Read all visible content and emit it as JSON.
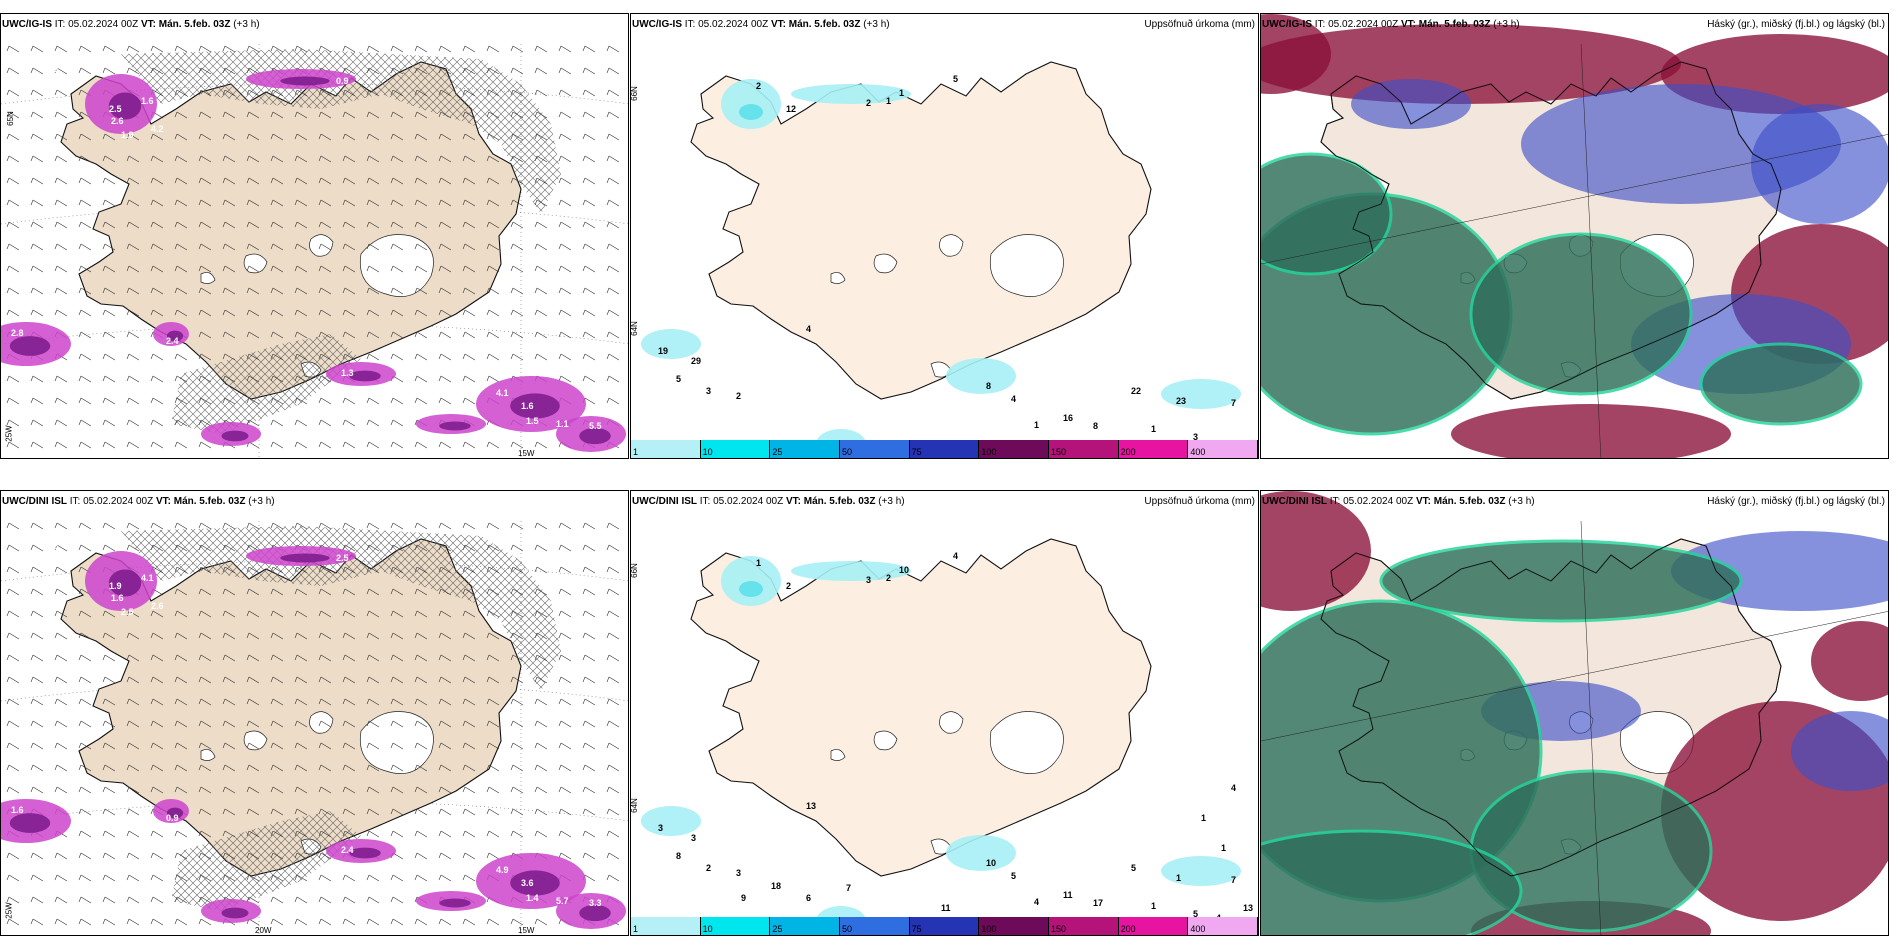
{
  "panels": [
    {
      "id": "igis-wind",
      "prefix": "UWC/IG-IS",
      "it": "IT: 05.02.2024 00Z",
      "vt": "VT: Mán. 5.feb. 03Z",
      "lead": "(+3 h)",
      "right_title": "",
      "precip_labels": [
        "0.2",
        "2.6",
        "1.6",
        "4.2",
        "2.5",
        "1.9",
        "2.4",
        "2.8",
        "1.3",
        "1.6",
        "1.5",
        "4.1",
        "1.1",
        "5.5",
        "0.9"
      ],
      "axis_labels": {
        "lat1": "65N",
        "lat2": "25W",
        "lon1": "",
        "lon2": "15W"
      }
    },
    {
      "id": "igis-precip",
      "prefix": "UWC/IG-IS",
      "it": "IT: 05.02.2024 00Z",
      "vt": "VT: Mán. 5.feb. 03Z",
      "lead": "(+3 h)",
      "right_title": "Uppsöfnuð úrkoma (mm)",
      "precip_labels": [
        "2",
        "1",
        "12",
        "2",
        "1",
        "5",
        "4",
        "19",
        "29",
        "5",
        "3",
        "2",
        "8",
        "4",
        "22",
        "23",
        "7",
        "16",
        "8",
        "1",
        "1",
        "3"
      ],
      "axis_labels": {
        "lat1": "66N",
        "lat2": "64N"
      }
    },
    {
      "id": "igis-cloud",
      "prefix": "UWC/IG-IS",
      "it": "IT: 05.02.2024 00Z",
      "vt": "VT: Mán. 5.feb. 03Z",
      "lead": "(+3 h)",
      "right_title": "Háský (gr.), miðský (fj.bl.) og lágský (bl.)"
    },
    {
      "id": "dini-wind",
      "prefix": "UWC/DINI ISL",
      "it": "IT: 05.02.2024 00Z",
      "vt": "VT: Mán. 5.feb. 03Z",
      "lead": "(+3 h)",
      "right_title": "",
      "precip_labels": [
        "0.8",
        "1.6",
        "4.1",
        "2.6",
        "1.9",
        "2.5",
        "0.9",
        "1.6",
        "2.4",
        "3.6",
        "1.4",
        "4.9",
        "5.7",
        "3.3",
        "2.5"
      ],
      "axis_labels": {
        "lat1": "",
        "lat2": "25W",
        "lon1": "20W",
        "lon2": "15W"
      }
    },
    {
      "id": "dini-precip",
      "prefix": "UWC/DINI ISL",
      "it": "IT: 05.02.2024 00Z",
      "vt": "VT: Mán. 5.feb. 03Z",
      "lead": "(+3 h)",
      "right_title": "Uppsöfnuð úrkoma (mm)",
      "precip_labels": [
        "1",
        "2",
        "2",
        "3",
        "10",
        "4",
        "13",
        "3",
        "3",
        "8",
        "2",
        "3",
        "10",
        "5",
        "5",
        "1",
        "7",
        "11",
        "17",
        "4",
        "1",
        "5",
        "4",
        "13",
        "11",
        "7",
        "6",
        "9",
        "18",
        "1",
        "4",
        "1"
      ],
      "axis_labels": {
        "lat1": "66N",
        "lat2": "64N"
      }
    },
    {
      "id": "dini-cloud",
      "prefix": "UWC/DINI ISL",
      "it": "IT: 05.02.2024 00Z",
      "vt": "VT: Mán. 5.feb. 03Z",
      "lead": "(+3 h)",
      "right_title": "Háský (gr.), miðský (fj.bl.) og lágský (bl.)"
    }
  ],
  "legend": {
    "ticks": [
      "1",
      "10",
      "25",
      "50",
      "75",
      "100",
      "150",
      "200",
      "400"
    ],
    "colors": [
      "#b4f0f5",
      "#00e6ee",
      "#00b4e6",
      "#2f6ee0",
      "#2434b4",
      "#6e0a5a",
      "#b4147a",
      "#e614a0",
      "#f0a8f0"
    ]
  },
  "colors": {
    "land": "#fcefe2",
    "land_wind": "#ecdcc8",
    "precip_wind": "#cc44cc",
    "precip_dark": "#7a1a8a",
    "cloud_high": "#2e6e5a",
    "cloud_mid": "#3c4ec8",
    "cloud_low": "#8a1038",
    "cloud_contour": "#22d49a"
  }
}
